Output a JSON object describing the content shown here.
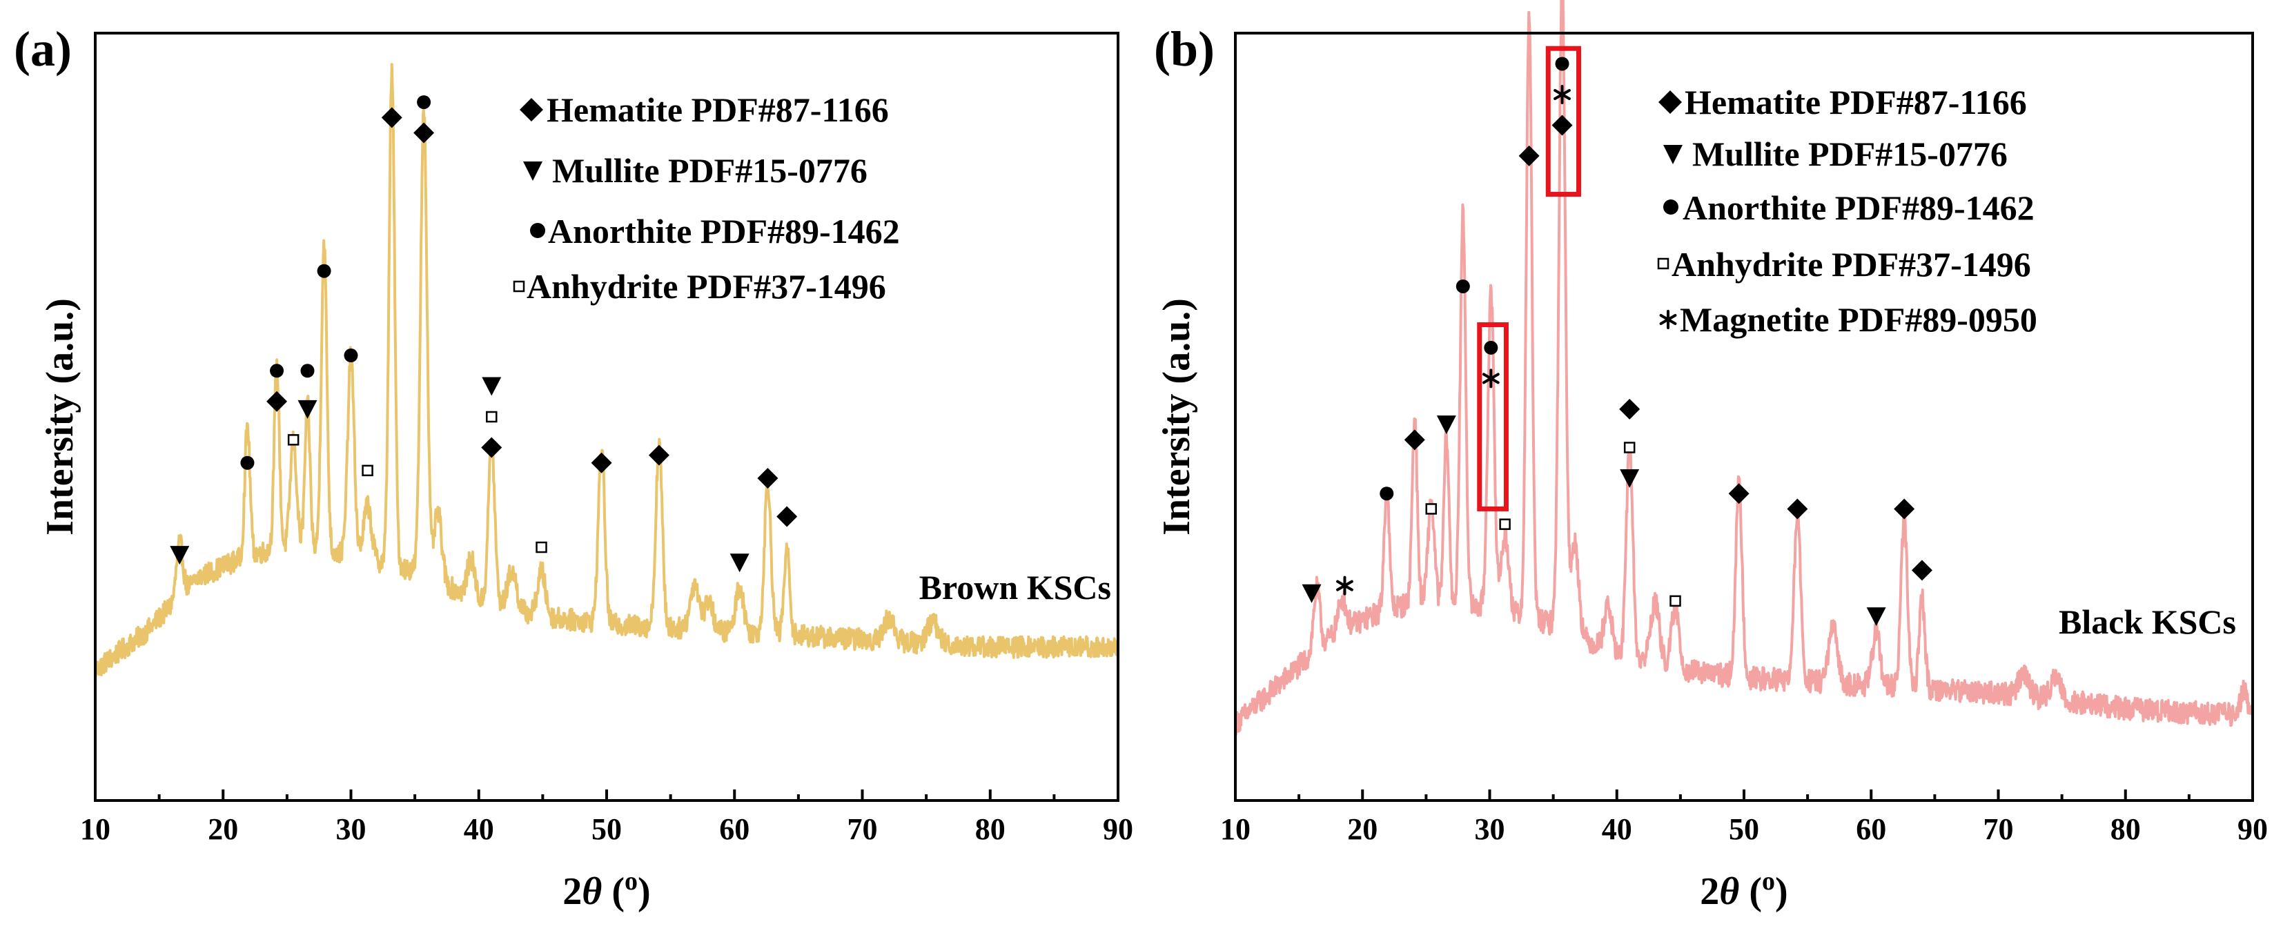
{
  "panels": [
    {
      "panel_label": "(a)",
      "sample_label": "Brown KSCs",
      "legend": [
        {
          "symbol": "diamond",
          "text": "Hematite PDF#87-1166"
        },
        {
          "symbol": "triangle-down",
          "text": "Mullite PDF#15-0776"
        },
        {
          "symbol": "circle",
          "text": "Anorthite PDF#89-1462"
        },
        {
          "symbol": "square-open",
          "text": "Anhydrite PDF#37-1496"
        }
      ]
    },
    {
      "panel_label": "(b)",
      "sample_label": "Black KSCs",
      "legend": [
        {
          "symbol": "diamond",
          "text": "Hematite PDF#87-1166"
        },
        {
          "symbol": "triangle-down",
          "text": "Mullite PDF#15-0776"
        },
        {
          "symbol": "circle",
          "text": "Anorthite PDF#89-1462"
        },
        {
          "symbol": "square-open",
          "text": "Anhydrite PDF#37-1496"
        },
        {
          "symbol": "asterisk",
          "text": "Magnetite PDF#89-0950"
        }
      ]
    }
  ],
  "chart_data": [
    {
      "type": "line",
      "title": "",
      "xlabel_prefix": "2",
      "xlabel_theta": "θ",
      "xlabel_open": " (",
      "xlabel_sup": "o",
      "xlabel_close": ")",
      "ylabel": "Intersity (a.u.)",
      "xlim": [
        10,
        90
      ],
      "ylim": [
        0,
        100
      ],
      "xticks": [
        10,
        20,
        30,
        40,
        50,
        60,
        70,
        80,
        90
      ],
      "xtick_labels": [
        "10",
        "20",
        "30",
        "40",
        "50",
        "60",
        "70",
        "80",
        "90"
      ],
      "yticks": [],
      "grid": false,
      "color": "#e9c46a",
      "series": [
        {
          "baseline": [
            [
              10,
              17
            ],
            [
              14,
              22
            ],
            [
              18,
              29
            ],
            [
              22,
              32
            ],
            [
              25,
              33
            ],
            [
              30,
              32
            ],
            [
              35,
              30
            ],
            [
              40,
              26
            ],
            [
              45,
              24
            ],
            [
              50,
              23
            ],
            [
              60,
              22
            ],
            [
              70,
              21
            ],
            [
              80,
              20
            ],
            [
              90,
              20
            ]
          ],
          "noise": 1.4,
          "peaks": [
            [
              16.6,
              7,
              0.25
            ],
            [
              21.9,
              17,
              0.2
            ],
            [
              24.2,
              24,
              0.2
            ],
            [
              25.5,
              14,
              0.25
            ],
            [
              26.6,
              19,
              0.2
            ],
            [
              27.9,
              40,
              0.22
            ],
            [
              30.0,
              26,
              0.25
            ],
            [
              31.3,
              7,
              0.3
            ],
            [
              33.2,
              64,
              0.22
            ],
            [
              35.7,
              61,
              0.25
            ],
            [
              36.8,
              9,
              0.3
            ],
            [
              39.4,
              5,
              0.3
            ],
            [
              41.0,
              21,
              0.25
            ],
            [
              42.6,
              5,
              0.35
            ],
            [
              44.9,
              6,
              0.3
            ],
            [
              49.6,
              23,
              0.25
            ],
            [
              54.1,
              24,
              0.25
            ],
            [
              56.9,
              6,
              0.35
            ],
            [
              58.0,
              4,
              0.3
            ],
            [
              60.4,
              6,
              0.3
            ],
            [
              62.6,
              20,
              0.25
            ],
            [
              64.1,
              11,
              0.22
            ],
            [
              72.1,
              3,
              0.4
            ],
            [
              75.5,
              3,
              0.4
            ]
          ]
        }
      ],
      "markers": [
        {
          "x": 16.6,
          "y": 32,
          "symbol": "triangle-down"
        },
        {
          "x": 21.9,
          "y": 44,
          "symbol": "circle"
        },
        {
          "x": 24.2,
          "y": 56,
          "symbol": "circle"
        },
        {
          "x": 24.2,
          "y": 52,
          "symbol": "diamond"
        },
        {
          "x": 25.5,
          "y": 47,
          "symbol": "square-open"
        },
        {
          "x": 26.6,
          "y": 56,
          "symbol": "circle"
        },
        {
          "x": 26.6,
          "y": 51,
          "symbol": "triangle-down"
        },
        {
          "x": 27.9,
          "y": 69,
          "symbol": "circle"
        },
        {
          "x": 30.0,
          "y": 58,
          "symbol": "circle"
        },
        {
          "x": 31.3,
          "y": 43,
          "symbol": "square-open"
        },
        {
          "x": 33.2,
          "y": 89,
          "symbol": "diamond"
        },
        {
          "x": 35.7,
          "y": 91,
          "symbol": "circle"
        },
        {
          "x": 35.7,
          "y": 87,
          "symbol": "diamond"
        },
        {
          "x": 41.0,
          "y": 54,
          "symbol": "triangle-down"
        },
        {
          "x": 41.0,
          "y": 50,
          "symbol": "square-open"
        },
        {
          "x": 41.0,
          "y": 46,
          "symbol": "diamond"
        },
        {
          "x": 44.9,
          "y": 33,
          "symbol": "square-open"
        },
        {
          "x": 49.6,
          "y": 44,
          "symbol": "diamond"
        },
        {
          "x": 54.1,
          "y": 45,
          "symbol": "diamond"
        },
        {
          "x": 60.4,
          "y": 31,
          "symbol": "triangle-down"
        },
        {
          "x": 62.6,
          "y": 42,
          "symbol": "diamond"
        },
        {
          "x": 64.1,
          "y": 37,
          "symbol": "diamond"
        }
      ],
      "highlights": []
    },
    {
      "type": "line",
      "title": "",
      "xlabel_prefix": "2",
      "xlabel_theta": "θ",
      "xlabel_open": " (",
      "xlabel_sup": "o",
      "xlabel_close": ")",
      "ylabel": "Intersity (a.u.)",
      "xlim": [
        10,
        90
      ],
      "ylim": [
        0,
        100
      ],
      "xticks": [
        10,
        20,
        30,
        40,
        50,
        60,
        70,
        80,
        90
      ],
      "xtick_labels": [
        "10",
        "20",
        "30",
        "40",
        "50",
        "60",
        "70",
        "80",
        "90"
      ],
      "yticks": [],
      "grid": false,
      "color": "#f4a3a3",
      "series": [
        {
          "baseline": [
            [
              10,
              10
            ],
            [
              14,
              16
            ],
            [
              18,
              22
            ],
            [
              22,
              25
            ],
            [
              25,
              26
            ],
            [
              30,
              25
            ],
            [
              35,
              23
            ],
            [
              40,
              19
            ],
            [
              45,
              17
            ],
            [
              50,
              16
            ],
            [
              60,
              15
            ],
            [
              70,
              14
            ],
            [
              80,
              12
            ],
            [
              90,
              11
            ]
          ],
          "noise": 1.5,
          "peaks": [
            [
              16.4,
              8,
              0.25
            ],
            [
              18.4,
              4,
              0.3
            ],
            [
              21.9,
              16,
              0.2
            ],
            [
              24.1,
              24,
              0.2
            ],
            [
              25.4,
              13,
              0.25
            ],
            [
              26.6,
              22,
              0.2
            ],
            [
              27.9,
              51,
              0.22
            ],
            [
              30.1,
              41,
              0.25
            ],
            [
              31.2,
              10,
              0.3
            ],
            [
              33.1,
              79,
              0.22
            ],
            [
              35.7,
              84,
              0.25
            ],
            [
              36.7,
              12,
              0.3
            ],
            [
              39.3,
              6,
              0.3
            ],
            [
              41.0,
              28,
              0.25
            ],
            [
              43.0,
              8,
              0.35
            ],
            [
              44.6,
              8,
              0.3
            ],
            [
              49.6,
              25,
              0.25
            ],
            [
              54.2,
              22,
              0.25
            ],
            [
              57.0,
              7,
              0.35
            ],
            [
              60.4,
              7,
              0.3
            ],
            [
              62.6,
              22,
              0.25
            ],
            [
              64.0,
              12,
              0.22
            ],
            [
              72.0,
              3,
              0.4
            ],
            [
              74.5,
              3,
              0.4
            ],
            [
              89.3,
              3,
              0.3
            ]
          ]
        }
      ],
      "markers": [
        {
          "x": 16.0,
          "y": 27,
          "symbol": "triangle-down"
        },
        {
          "x": 18.6,
          "y": 28,
          "symbol": "asterisk"
        },
        {
          "x": 21.9,
          "y": 40,
          "symbol": "circle"
        },
        {
          "x": 25.4,
          "y": 38,
          "symbol": "square-open"
        },
        {
          "x": 24.1,
          "y": 47,
          "symbol": "diamond"
        },
        {
          "x": 26.6,
          "y": 49,
          "symbol": "triangle-down"
        },
        {
          "x": 27.9,
          "y": 67,
          "symbol": "circle"
        },
        {
          "x": 30.1,
          "y": 59,
          "symbol": "circle"
        },
        {
          "x": 30.1,
          "y": 55,
          "symbol": "asterisk"
        },
        {
          "x": 31.2,
          "y": 36,
          "symbol": "square-open"
        },
        {
          "x": 33.1,
          "y": 84,
          "symbol": "diamond"
        },
        {
          "x": 35.7,
          "y": 96,
          "symbol": "circle"
        },
        {
          "x": 35.7,
          "y": 92,
          "symbol": "asterisk"
        },
        {
          "x": 35.7,
          "y": 88,
          "symbol": "diamond"
        },
        {
          "x": 41.0,
          "y": 51,
          "symbol": "diamond"
        },
        {
          "x": 41.0,
          "y": 46,
          "symbol": "square-open"
        },
        {
          "x": 41.0,
          "y": 42,
          "symbol": "triangle-down"
        },
        {
          "x": 44.6,
          "y": 26,
          "symbol": "square-open"
        },
        {
          "x": 49.6,
          "y": 40,
          "symbol": "diamond"
        },
        {
          "x": 54.2,
          "y": 38,
          "symbol": "diamond"
        },
        {
          "x": 60.4,
          "y": 24,
          "symbol": "triangle-down"
        },
        {
          "x": 62.6,
          "y": 38,
          "symbol": "diamond"
        },
        {
          "x": 64.0,
          "y": 30,
          "symbol": "diamond"
        }
      ],
      "highlights": [
        {
          "x0": 29.2,
          "x1": 31.3,
          "y0": 38,
          "y1": 62
        },
        {
          "x0": 34.6,
          "x1": 37.0,
          "y0": 79,
          "y1": 98
        }
      ]
    }
  ]
}
